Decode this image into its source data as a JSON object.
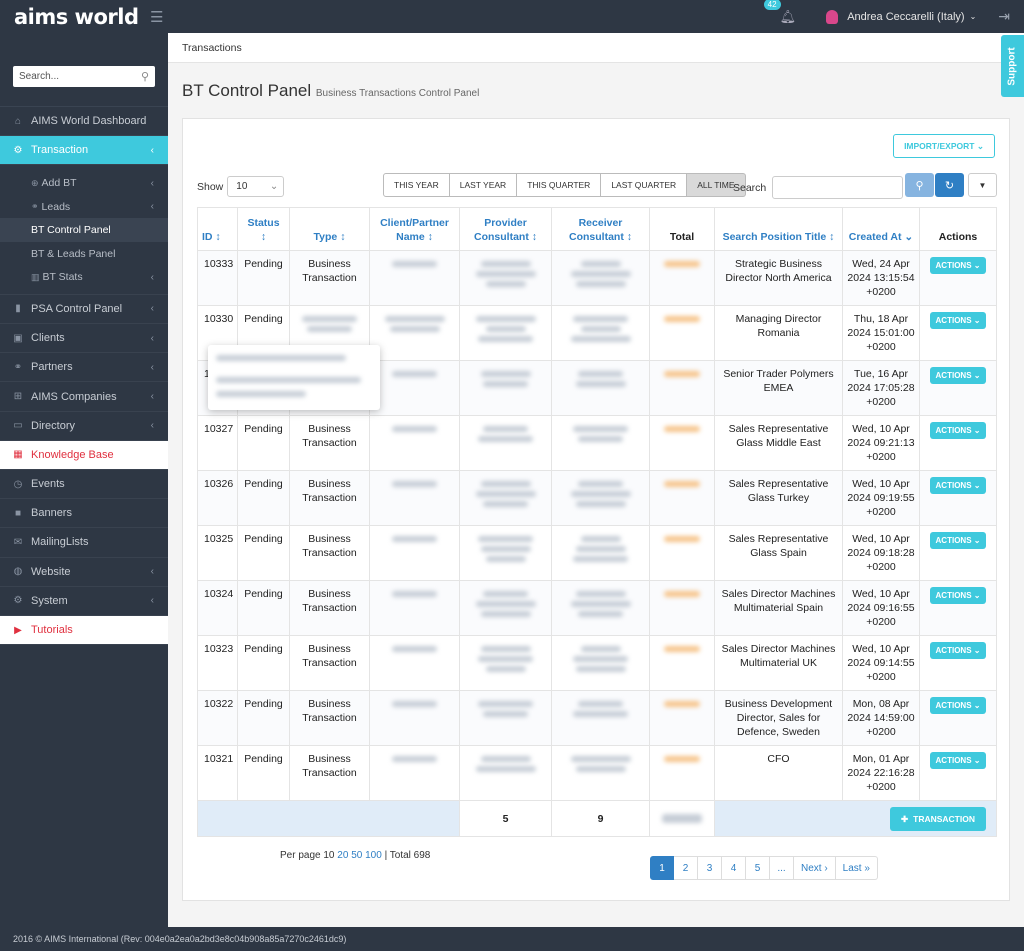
{
  "header": {
    "logo": "aims world",
    "notif_count": "42",
    "user_name": "Andrea Ceccarelli (Italy)"
  },
  "sidebar": {
    "search_placeholder": "Search...",
    "items": [
      {
        "label": "AIMS World Dashboard",
        "icon": "home-icon"
      },
      {
        "label": "Transaction",
        "icon": "cogs-icon"
      },
      {
        "label": "Add BT",
        "icon": "plus-circle-icon"
      },
      {
        "label": "Leads",
        "icon": "link-icon"
      },
      {
        "label": "BT Control Panel"
      },
      {
        "label": "BT & Leads Panel"
      },
      {
        "label": "BT Stats",
        "icon": "bar-chart-icon"
      },
      {
        "label": "PSA Control Panel",
        "icon": "bookmark-icon"
      },
      {
        "label": "Clients",
        "icon": "briefcase-icon"
      },
      {
        "label": "Partners",
        "icon": "link-icon"
      },
      {
        "label": "AIMS Companies",
        "icon": "sitemap-icon"
      },
      {
        "label": "Directory",
        "icon": "folder-icon"
      },
      {
        "label": "Knowledge Base",
        "icon": "grid-icon"
      },
      {
        "label": "Events",
        "icon": "clock-icon"
      },
      {
        "label": "Banners",
        "icon": "square-icon"
      },
      {
        "label": "MailingLists",
        "icon": "envelope-icon"
      },
      {
        "label": "Website",
        "icon": "globe-icon"
      },
      {
        "label": "System",
        "icon": "gear-icon"
      },
      {
        "label": "Tutorials",
        "icon": "youtube-icon"
      }
    ]
  },
  "breadcrumb": "Transactions",
  "support": "Support",
  "page": {
    "title": "BT Control Panel",
    "subtitle": "Business Transactions Control Panel"
  },
  "toolbar": {
    "import_export": "IMPORT/EXPORT",
    "show_label": "Show",
    "show_value": "10",
    "ranges": [
      "THIS YEAR",
      "LAST YEAR",
      "THIS QUARTER",
      "LAST QUARTER",
      "ALL TIME"
    ],
    "search_label": "Search"
  },
  "table": {
    "headers": {
      "id": "ID",
      "status": "Status",
      "type": "Type",
      "client": "Client/Partner Name",
      "provider": "Provider Consultant",
      "receiver": "Receiver Consultant",
      "total": "Total",
      "position": "Search Position Title",
      "created": "Created At",
      "actions": "Actions"
    },
    "action_label": "ACTIONS",
    "rows": [
      {
        "id": "10333",
        "status": "Pending",
        "type": "Business Transaction",
        "position": "Strategic Business Director North America",
        "created": "Wed, 24 Apr 2024 13:15:54 +0200"
      },
      {
        "id": "10330",
        "status": "Pending",
        "type": "",
        "position": "Managing Director Romania",
        "created": "Thu, 18 Apr 2024 15:01:00 +0200"
      },
      {
        "id": "1",
        "status": "",
        "type": "",
        "position": "Senior Trader Polymers EMEA",
        "created": "Tue, 16 Apr 2024 17:05:28 +0200"
      },
      {
        "id": "10327",
        "status": "Pending",
        "type": "Business Transaction",
        "position": "Sales Representative Glass Middle East",
        "created": "Wed, 10 Apr 2024 09:21:13 +0200"
      },
      {
        "id": "10326",
        "status": "Pending",
        "type": "Business Transaction",
        "position": "Sales Representative Glass Turkey",
        "created": "Wed, 10 Apr 2024 09:19:55 +0200"
      },
      {
        "id": "10325",
        "status": "Pending",
        "type": "Business Transaction",
        "position": "Sales Representative Glass Spain",
        "created": "Wed, 10 Apr 2024 09:18:28 +0200"
      },
      {
        "id": "10324",
        "status": "Pending",
        "type": "Business Transaction",
        "position": "Sales Director Machines Multimaterial Spain",
        "created": "Wed, 10 Apr 2024 09:16:55 +0200"
      },
      {
        "id": "10323",
        "status": "Pending",
        "type": "Business Transaction",
        "position": "Sales Director Machines Multimaterial UK",
        "created": "Wed, 10 Apr 2024 09:14:55 +0200"
      },
      {
        "id": "10322",
        "status": "Pending",
        "type": "Business Transaction",
        "position": "Business Development Director, Sales for Defence, Sweden",
        "created": "Mon, 08 Apr 2024 14:59:00 +0200"
      },
      {
        "id": "10321",
        "status": "Pending",
        "type": "Business Transaction",
        "position": "CFO",
        "created": "Mon, 01 Apr 2024 22:16:28 +0200"
      }
    ],
    "footer": {
      "provider_count": "5",
      "receiver_count": "9",
      "add_label": "TRANSACTION"
    }
  },
  "pagination": {
    "per_page_label": "Per page 10",
    "opt_20": "20",
    "opt_50": "50",
    "opt_100": "100",
    "total": "| Total 698",
    "pages": [
      "1",
      "2",
      "3",
      "4",
      "5",
      "...",
      "Next ›",
      "Last »"
    ]
  },
  "footer": "2016 © AIMS International (Rev: 004e0a2ea0a2bd3e8c04b908a85a7270c2461dc9)",
  "colors": {
    "accent": "#3ec9dd",
    "dark": "#2e3744",
    "link": "#2f7fc4",
    "danger": "#e0303f"
  }
}
